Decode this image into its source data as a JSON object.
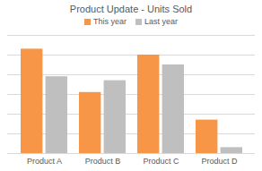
{
  "chart_data": {
    "type": "bar",
    "title": "Product Update - Units Sold",
    "categories": [
      "Product A",
      "Product B",
      "Product C",
      "Product D"
    ],
    "series": [
      {
        "name": "This year",
        "color": "#f79646",
        "values": [
          5.3,
          3.1,
          5.0,
          1.7
        ]
      },
      {
        "name": "Last year",
        "color": "#bfbfbf",
        "values": [
          3.9,
          3.7,
          4.5,
          0.3
        ]
      }
    ],
    "ylim": [
      0,
      6
    ],
    "yticks": [
      0,
      1,
      2,
      3,
      4,
      5,
      6
    ],
    "grid": true,
    "legend": "top",
    "tick_labels": "x"
  }
}
